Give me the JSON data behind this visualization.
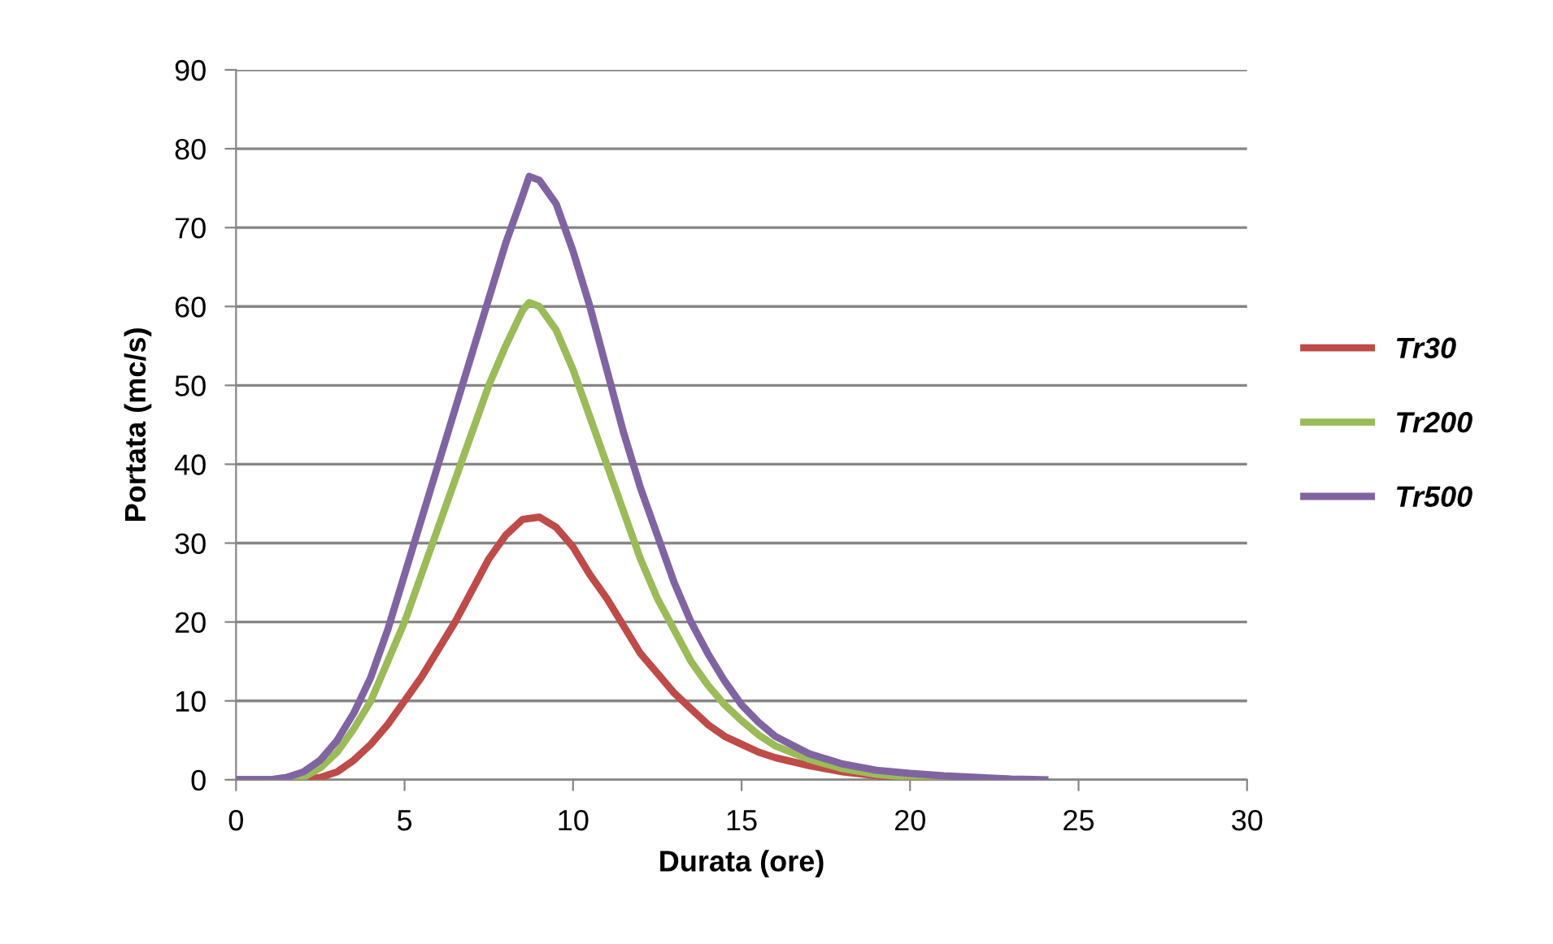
{
  "chart_data": {
    "type": "line",
    "xlabel": "Durata (ore)",
    "ylabel": "Portata (mc/s)",
    "xlim": [
      0,
      30
    ],
    "xticks": [
      0,
      5,
      10,
      15,
      20,
      25,
      30
    ],
    "ylim": [
      0,
      90
    ],
    "yticks": [
      0,
      10,
      20,
      30,
      40,
      50,
      60,
      70,
      80,
      90
    ],
    "grid": "y",
    "legend": "right",
    "marker": "none",
    "line_style": "solid",
    "series": [
      {
        "name": "Tr30",
        "color": "#be4b48",
        "x": [
          0,
          1,
          2,
          2.5,
          3,
          3.5,
          4,
          4.5,
          5,
          5.5,
          6,
          6.5,
          7,
          7.5,
          8,
          8.5,
          9,
          9.5,
          10,
          10.5,
          11,
          11.5,
          12,
          12.5,
          13,
          13.5,
          14,
          14.5,
          15,
          15.5,
          16,
          17,
          18,
          19,
          20,
          21
        ],
        "values": [
          0,
          0,
          0,
          0.3,
          1,
          2.5,
          4.5,
          7,
          10,
          13,
          16.5,
          20,
          24,
          28,
          31,
          33,
          33.3,
          32,
          29.5,
          26,
          23,
          19.5,
          16,
          13.5,
          11,
          9,
          7,
          5.5,
          4.5,
          3.5,
          2.8,
          1.8,
          1,
          0.5,
          0.2,
          0
        ]
      },
      {
        "name": "Tr200",
        "color": "#9bbb59",
        "x": [
          0,
          1,
          1.5,
          2,
          2.5,
          3,
          3.5,
          4,
          4.5,
          5,
          5.5,
          6,
          6.5,
          7,
          7.5,
          8,
          8.5,
          8.7,
          9,
          9.5,
          10,
          10.5,
          11,
          11.5,
          12,
          12.5,
          13,
          13.5,
          14,
          14.5,
          15,
          15.5,
          16,
          17,
          18,
          19,
          20,
          21
        ],
        "values": [
          0,
          0,
          0,
          0.3,
          1.5,
          3.5,
          6.5,
          10,
          15,
          20,
          26,
          32,
          38,
          44,
          50,
          55,
          59.5,
          60.5,
          60,
          57,
          52,
          46,
          40,
          34,
          28,
          23,
          19,
          15,
          12,
          9.5,
          7.5,
          5.7,
          4.3,
          2.6,
          1.4,
          0.7,
          0.3,
          0
        ]
      },
      {
        "name": "Tr500",
        "color": "#8064a2",
        "x": [
          0,
          1,
          1.5,
          2,
          2.5,
          3,
          3.5,
          4,
          4.5,
          5,
          5.5,
          6,
          6.5,
          7,
          7.5,
          8,
          8.5,
          8.7,
          9,
          9.5,
          10,
          10.5,
          11,
          11.5,
          12,
          12.5,
          13,
          13.5,
          14,
          14.5,
          15,
          15.5,
          16,
          17,
          18,
          19,
          20,
          21,
          22,
          23,
          24
        ],
        "values": [
          0,
          0,
          0.3,
          1,
          2.5,
          5,
          8.5,
          13,
          19,
          26,
          33,
          40,
          47,
          54,
          61,
          68,
          74,
          76.5,
          76,
          73,
          67,
          60,
          52,
          44,
          37,
          31,
          25,
          20,
          16,
          12.5,
          9.5,
          7.3,
          5.5,
          3.3,
          2,
          1.2,
          0.8,
          0.5,
          0.3,
          0.1,
          0
        ]
      }
    ]
  }
}
